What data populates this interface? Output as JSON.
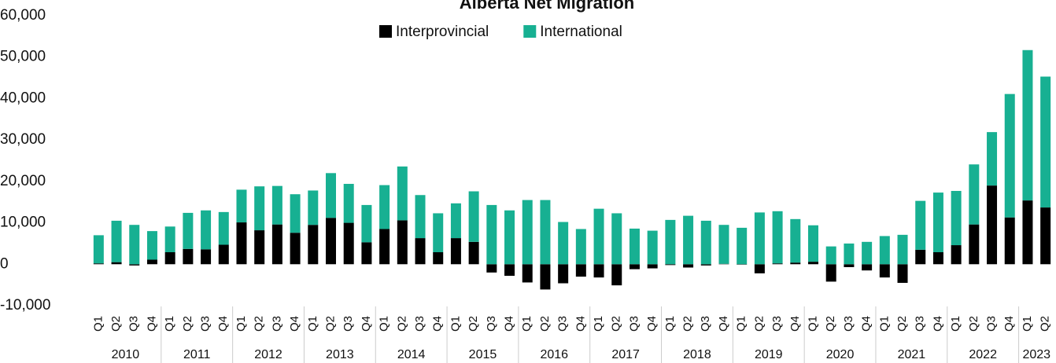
{
  "chart_data": {
    "type": "stacked-bar",
    "title": "Alberta Net Migration",
    "categories": [
      "Q1",
      "Q2",
      "Q3",
      "Q4",
      "Q1",
      "Q2",
      "Q3",
      "Q4",
      "Q1",
      "Q2",
      "Q3",
      "Q4",
      "Q1",
      "Q2",
      "Q3",
      "Q4",
      "Q1",
      "Q2",
      "Q3",
      "Q4",
      "Q1",
      "Q2",
      "Q3",
      "Q4",
      "Q1",
      "Q2",
      "Q3",
      "Q4",
      "Q1",
      "Q2",
      "Q3",
      "Q4",
      "Q1",
      "Q2",
      "Q3",
      "Q4",
      "Q1",
      "Q2",
      "Q3",
      "Q4",
      "Q1",
      "Q2",
      "Q3",
      "Q4",
      "Q1",
      "Q2",
      "Q3",
      "Q4",
      "Q1",
      "Q2",
      "Q3",
      "Q4",
      "Q1",
      "Q2"
    ],
    "years": [
      "2010",
      "2010",
      "2010",
      "2010",
      "2011",
      "2011",
      "2011",
      "2011",
      "2012",
      "2012",
      "2012",
      "2012",
      "2013",
      "2013",
      "2013",
      "2013",
      "2014",
      "2014",
      "2014",
      "2014",
      "2015",
      "2015",
      "2015",
      "2015",
      "2016",
      "2016",
      "2016",
      "2016",
      "2017",
      "2017",
      "2017",
      "2017",
      "2018",
      "2018",
      "2018",
      "2018",
      "2019",
      "2019",
      "2019",
      "2019",
      "2020",
      "2020",
      "2020",
      "2020",
      "2021",
      "2021",
      "2021",
      "2021",
      "2022",
      "2022",
      "2022",
      "2022",
      "2023",
      "2023"
    ],
    "series": [
      {
        "name": "Interprovincial",
        "color": "#000000",
        "values": [
          200,
          500,
          -300,
          1100,
          2900,
          3700,
          3600,
          4700,
          10100,
          8200,
          9600,
          7600,
          9500,
          11200,
          10000,
          5300,
          8500,
          10600,
          6300,
          2900,
          6300,
          5400,
          -2000,
          -2800,
          -4400,
          -6100,
          -4600,
          -3000,
          -3200,
          -5100,
          -1200,
          -1000,
          -200,
          -800,
          -300,
          100,
          -100,
          -2200,
          200,
          400,
          600,
          -4200,
          -700,
          -1500,
          -3200,
          -4500,
          3500,
          2900,
          4600,
          9600,
          19000,
          11300,
          15400,
          13700
        ]
      },
      {
        "name": "International",
        "color": "#17b092",
        "values": [
          6800,
          10000,
          9500,
          6900,
          6200,
          8700,
          9400,
          7900,
          7900,
          10600,
          9300,
          9300,
          8300,
          10800,
          9400,
          9000,
          10600,
          13000,
          10400,
          9400,
          8400,
          12200,
          14300,
          13000,
          15500,
          15500,
          10200,
          8500,
          13400,
          12300,
          8600,
          8100,
          10700,
          11700,
          10500,
          9400,
          8800,
          12500,
          12600,
          10500,
          8800,
          4300,
          5000,
          5400,
          6800,
          7100,
          11800,
          14400,
          13100,
          14500,
          12900,
          29800,
          36300,
          31600
        ]
      }
    ],
    "ylim": [
      -10000,
      60000
    ],
    "yticks": [
      {
        "value": -10000,
        "label": "-10,000"
      },
      0,
      {
        "value": 10000,
        "label": "10,000"
      },
      {
        "value": 20000,
        "label": "20,000"
      },
      {
        "value": 30000,
        "label": "30,000"
      },
      {
        "value": 40000,
        "label": "40,000"
      },
      {
        "value": 50000,
        "label": "50,000"
      },
      {
        "value": 60000,
        "label": "60,000"
      }
    ]
  }
}
